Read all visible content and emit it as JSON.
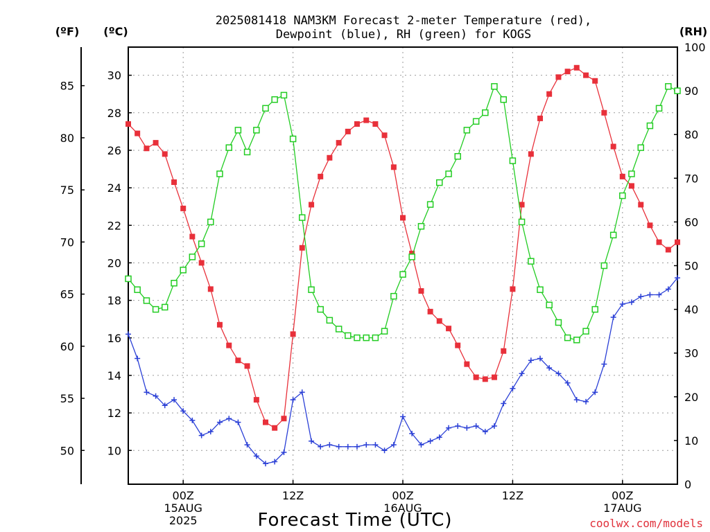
{
  "chart_data": {
    "type": "line",
    "title": [
      "2025081418 NAM3KM Forecast 2-meter Temperature (red),",
      "Dewpoint (blue), RH (green) for KOGS"
    ],
    "xlabel": "Forecast Time (UTC)",
    "credit": "coolwx.com/models",
    "units": {
      "f": "(ºF)",
      "c": "(ºC)",
      "rh": "(RH)"
    },
    "x_range_hours": [
      -5,
      45
    ],
    "x_ticks": [
      {
        "h": 0,
        "lines": [
          "00Z",
          "15AUG",
          "2025"
        ]
      },
      {
        "h": 10,
        "lines": [
          "12Z"
        ]
      },
      {
        "h": 20,
        "lines": [
          "00Z",
          "16AUG"
        ]
      },
      {
        "h": 30,
        "lines": [
          "12Z"
        ]
      },
      {
        "h": 40,
        "lines": [
          "00Z",
          "17AUG"
        ]
      }
    ],
    "y_celsius_range": [
      8.2,
      31.5
    ],
    "y_celsius_ticks": [
      "10",
      "12",
      "14",
      "16",
      "18",
      "20",
      "22",
      "24",
      "26",
      "28",
      "30"
    ],
    "y_fahrenheit_ticks": [
      "50",
      "55",
      "60",
      "65",
      "70",
      "75",
      "80",
      "85"
    ],
    "y_rh_range": [
      0,
      100
    ],
    "y_rh_ticks": [
      "0",
      "10",
      "20",
      "30",
      "40",
      "50",
      "60",
      "70",
      "80",
      "90",
      "100"
    ],
    "grid": true,
    "series": [
      {
        "name": "Temperature",
        "color": "#e8303a",
        "marker": "square-filled",
        "axis": "celsius",
        "x": [
          -5,
          -4.17,
          -3.33,
          -2.5,
          -1.67,
          -0.83,
          0,
          0.83,
          1.67,
          2.5,
          3.33,
          4.17,
          5,
          5.83,
          6.67,
          7.5,
          8.33,
          9.17,
          10,
          10.83,
          11.67,
          12.5,
          13.33,
          14.17,
          15,
          15.83,
          16.67,
          17.5,
          18.33,
          19.17,
          20,
          20.83,
          21.67,
          22.5,
          23.33,
          24.17,
          25,
          25.83,
          26.67,
          27.5,
          28.33,
          29.17,
          30,
          30.83,
          31.67,
          32.5,
          33.33,
          34.17,
          35,
          35.83,
          36.67,
          37.5,
          38.33,
          39.17,
          40,
          40.83,
          41.67,
          42.5,
          43.33,
          44.17,
          45
        ],
        "values": [
          27.4,
          26.9,
          26.1,
          26.4,
          25.8,
          24.3,
          22.9,
          21.4,
          20.0,
          18.6,
          16.7,
          15.6,
          14.8,
          14.5,
          12.7,
          11.5,
          11.2,
          11.7,
          16.2,
          20.8,
          23.1,
          24.6,
          25.6,
          26.4,
          27.0,
          27.4,
          27.6,
          27.4,
          26.8,
          25.1,
          22.4,
          20.5,
          18.5,
          17.4,
          16.9,
          16.5,
          15.6,
          14.6,
          13.9,
          13.8,
          13.9,
          15.3,
          18.6,
          23.1,
          25.8,
          27.7,
          29.0,
          29.9,
          30.2,
          30.4,
          30.0,
          29.7,
          28.0,
          26.2,
          24.6,
          24.1,
          23.1,
          22.0,
          21.1,
          20.7,
          21.1
        ]
      },
      {
        "name": "Dewpoint",
        "color": "#2a3fd6",
        "marker": "plus",
        "axis": "celsius",
        "x": [
          -5,
          -4.17,
          -3.33,
          -2.5,
          -1.67,
          -0.83,
          0,
          0.83,
          1.67,
          2.5,
          3.33,
          4.17,
          5,
          5.83,
          6.67,
          7.5,
          8.33,
          9.17,
          10,
          10.83,
          11.67,
          12.5,
          13.33,
          14.17,
          15,
          15.83,
          16.67,
          17.5,
          18.33,
          19.17,
          20,
          20.83,
          21.67,
          22.5,
          23.33,
          24.17,
          25,
          25.83,
          26.67,
          27.5,
          28.33,
          29.17,
          30,
          30.83,
          31.67,
          32.5,
          33.33,
          34.17,
          35,
          35.83,
          36.67,
          37.5,
          38.33,
          39.17,
          40,
          40.83,
          41.67,
          42.5,
          43.33,
          44.17,
          45
        ],
        "values": [
          16.2,
          14.9,
          13.1,
          12.9,
          12.4,
          12.7,
          12.1,
          11.6,
          10.8,
          11.0,
          11.5,
          11.7,
          11.5,
          10.3,
          9.7,
          9.3,
          9.4,
          9.9,
          12.7,
          13.1,
          10.5,
          10.2,
          10.3,
          10.2,
          10.2,
          10.2,
          10.3,
          10.3,
          10.0,
          10.3,
          11.8,
          10.9,
          10.3,
          10.5,
          10.7,
          11.2,
          11.3,
          11.2,
          11.3,
          11.0,
          11.3,
          12.5,
          13.3,
          14.1,
          14.8,
          14.9,
          14.4,
          14.1,
          13.6,
          12.7,
          12.6,
          13.1,
          14.6,
          17.1,
          17.8,
          17.9,
          18.2,
          18.3,
          18.3,
          18.6,
          19.2
        ]
      },
      {
        "name": "RH",
        "color": "#22cc22",
        "marker": "square-open",
        "axis": "rh",
        "x": [
          -5,
          -4.17,
          -3.33,
          -2.5,
          -1.67,
          -0.83,
          0,
          0.83,
          1.67,
          2.5,
          3.33,
          4.17,
          5,
          5.83,
          6.67,
          7.5,
          8.33,
          9.17,
          10,
          10.83,
          11.67,
          12.5,
          13.33,
          14.17,
          15,
          15.83,
          16.67,
          17.5,
          18.33,
          19.17,
          20,
          20.83,
          21.67,
          22.5,
          23.33,
          24.17,
          25,
          25.83,
          26.67,
          27.5,
          28.33,
          29.17,
          30,
          30.83,
          31.67,
          32.5,
          33.33,
          34.17,
          35,
          35.83,
          36.67,
          37.5,
          38.33,
          39.17,
          40,
          40.83,
          41.67,
          42.5,
          43.33,
          44.17,
          45
        ],
        "values": [
          47,
          44.5,
          42,
          40,
          40.5,
          46,
          49,
          52,
          55,
          60,
          71,
          77,
          81,
          76,
          81,
          86,
          88,
          89,
          79,
          61,
          44.5,
          40,
          37.5,
          35.5,
          34,
          33.5,
          33.5,
          33.5,
          35,
          43,
          48,
          52,
          59,
          64,
          69,
          71,
          75,
          81,
          83,
          85,
          91,
          88,
          74,
          60,
          51,
          44.5,
          41,
          37,
          33.5,
          33,
          35,
          40,
          50,
          57,
          66,
          71,
          77,
          82,
          86,
          91,
          90
        ]
      }
    ]
  }
}
